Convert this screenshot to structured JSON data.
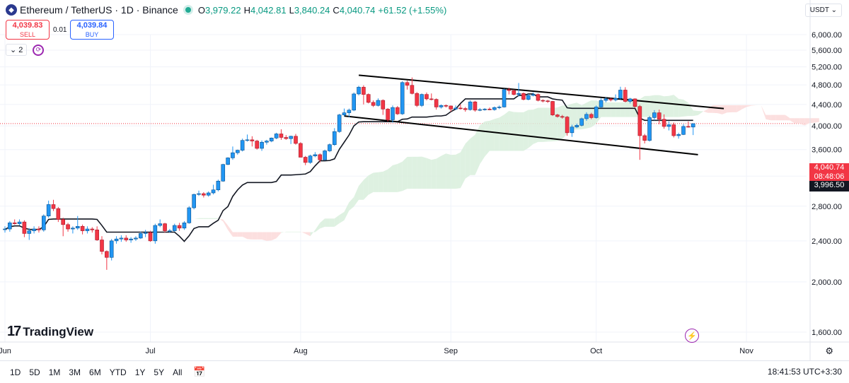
{
  "header": {
    "symbol_title": "Ethereum / TetherUS · 1D · Binance",
    "open_label": "O",
    "open_value": "3,979.22",
    "high_label": "H",
    "high_value": "4,042.81",
    "low_label": "L",
    "low_value": "3,840.24",
    "close_label": "C",
    "close_value": "4,040.74",
    "change": "+61.52 (+1.55%)",
    "currency": "USDT"
  },
  "trade": {
    "sell_price": "4,039.83",
    "sell_label": "SELL",
    "spread": "0.01",
    "buy_price": "4,039.84",
    "buy_label": "BUY"
  },
  "indicators": {
    "count": "2"
  },
  "price_tags": {
    "last_price": "4,040.74",
    "countdown": "08:48:06",
    "crosshair_price": "3,996.50"
  },
  "brand": {
    "logo_text": "TradingView"
  },
  "footer": {
    "ranges": [
      "1D",
      "5D",
      "1M",
      "3M",
      "6M",
      "YTD",
      "1Y",
      "5Y",
      "All"
    ],
    "clock": "18:41:53 UTC+3:30"
  },
  "colors": {
    "up": "#22ab94",
    "up_body": "#2196f3",
    "down": "#f23645",
    "baseline": "#131722",
    "cloud_green": "#d8efdc",
    "cloud_red": "#fbd9d9"
  },
  "chart_data": {
    "type": "candlestick",
    "title": "Ethereum / TetherUS · 1D · Binance",
    "ylim": [
      1500,
      6200
    ],
    "y_ticks": [
      "6,000.00",
      "5,600.00",
      "5,200.00",
      "4,800.00",
      "4,400.00",
      "4,000.00",
      "3,600.00",
      "3,200.00",
      "2,800.00",
      "2,400.00",
      "2,000.00",
      "1,600.00"
    ],
    "x_tick_labels": [
      "Jun",
      "Jul",
      "Aug",
      "Sep",
      "Oct",
      "Nov"
    ],
    "candles": [
      {
        "date": "2025-06-01",
        "o": 2530,
        "h": 2560,
        "l": 2490,
        "c": 2530
      },
      {
        "date": "2025-06-02",
        "o": 2530,
        "h": 2620,
        "l": 2500,
        "c": 2600
      },
      {
        "date": "2025-06-03",
        "o": 2600,
        "h": 2640,
        "l": 2580,
        "c": 2590
      },
      {
        "date": "2025-06-04",
        "o": 2590,
        "h": 2640,
        "l": 2570,
        "c": 2610
      },
      {
        "date": "2025-06-05",
        "o": 2610,
        "h": 2630,
        "l": 2440,
        "c": 2480
      },
      {
        "date": "2025-06-06",
        "o": 2480,
        "h": 2540,
        "l": 2410,
        "c": 2510
      },
      {
        "date": "2025-06-07",
        "o": 2510,
        "h": 2560,
        "l": 2480,
        "c": 2530
      },
      {
        "date": "2025-06-08",
        "o": 2530,
        "h": 2560,
        "l": 2490,
        "c": 2520
      },
      {
        "date": "2025-06-09",
        "o": 2520,
        "h": 2700,
        "l": 2500,
        "c": 2680
      },
      {
        "date": "2025-06-10",
        "o": 2680,
        "h": 2870,
        "l": 2660,
        "c": 2820
      },
      {
        "date": "2025-06-11",
        "o": 2820,
        "h": 2880,
        "l": 2740,
        "c": 2770
      },
      {
        "date": "2025-06-12",
        "o": 2770,
        "h": 2790,
        "l": 2610,
        "c": 2640
      },
      {
        "date": "2025-06-13",
        "o": 2640,
        "h": 2660,
        "l": 2450,
        "c": 2580
      },
      {
        "date": "2025-06-14",
        "o": 2580,
        "h": 2600,
        "l": 2500,
        "c": 2530
      },
      {
        "date": "2025-06-15",
        "o": 2530,
        "h": 2560,
        "l": 2480,
        "c": 2540
      },
      {
        "date": "2025-06-16",
        "o": 2540,
        "h": 2680,
        "l": 2520,
        "c": 2560
      },
      {
        "date": "2025-06-17",
        "o": 2560,
        "h": 2580,
        "l": 2470,
        "c": 2510
      },
      {
        "date": "2025-06-18",
        "o": 2510,
        "h": 2560,
        "l": 2480,
        "c": 2530
      },
      {
        "date": "2025-06-19",
        "o": 2530,
        "h": 2550,
        "l": 2490,
        "c": 2520
      },
      {
        "date": "2025-06-20",
        "o": 2520,
        "h": 2560,
        "l": 2400,
        "c": 2410
      },
      {
        "date": "2025-06-21",
        "o": 2410,
        "h": 2450,
        "l": 2260,
        "c": 2290
      },
      {
        "date": "2025-06-22",
        "o": 2290,
        "h": 2300,
        "l": 2110,
        "c": 2230
      },
      {
        "date": "2025-06-23",
        "o": 2230,
        "h": 2420,
        "l": 2200,
        "c": 2400
      },
      {
        "date": "2025-06-24",
        "o": 2400,
        "h": 2450,
        "l": 2370,
        "c": 2420
      },
      {
        "date": "2025-06-25",
        "o": 2420,
        "h": 2460,
        "l": 2390,
        "c": 2430
      },
      {
        "date": "2025-06-26",
        "o": 2430,
        "h": 2460,
        "l": 2390,
        "c": 2410
      },
      {
        "date": "2025-06-27",
        "o": 2410,
        "h": 2440,
        "l": 2380,
        "c": 2420
      },
      {
        "date": "2025-06-28",
        "o": 2420,
        "h": 2450,
        "l": 2400,
        "c": 2430
      },
      {
        "date": "2025-06-29",
        "o": 2430,
        "h": 2500,
        "l": 2420,
        "c": 2480
      },
      {
        "date": "2025-06-30",
        "o": 2480,
        "h": 2520,
        "l": 2440,
        "c": 2490
      },
      {
        "date": "2025-07-01",
        "o": 2490,
        "h": 2510,
        "l": 2390,
        "c": 2400
      },
      {
        "date": "2025-07-02",
        "o": 2400,
        "h": 2590,
        "l": 2370,
        "c": 2570
      },
      {
        "date": "2025-07-03",
        "o": 2570,
        "h": 2640,
        "l": 2550,
        "c": 2590
      },
      {
        "date": "2025-07-04",
        "o": 2590,
        "h": 2600,
        "l": 2490,
        "c": 2510
      },
      {
        "date": "2025-07-05",
        "o": 2510,
        "h": 2530,
        "l": 2490,
        "c": 2510
      },
      {
        "date": "2025-07-06",
        "o": 2510,
        "h": 2590,
        "l": 2500,
        "c": 2570
      },
      {
        "date": "2025-07-07",
        "o": 2570,
        "h": 2600,
        "l": 2510,
        "c": 2540
      },
      {
        "date": "2025-07-08",
        "o": 2540,
        "h": 2620,
        "l": 2520,
        "c": 2600
      },
      {
        "date": "2025-07-09",
        "o": 2600,
        "h": 2800,
        "l": 2590,
        "c": 2780
      },
      {
        "date": "2025-07-10",
        "o": 2780,
        "h": 2960,
        "l": 2760,
        "c": 2950
      },
      {
        "date": "2025-07-11",
        "o": 2950,
        "h": 3000,
        "l": 2930,
        "c": 2960
      },
      {
        "date": "2025-07-12",
        "o": 2960,
        "h": 2980,
        "l": 2910,
        "c": 2940
      },
      {
        "date": "2025-07-13",
        "o": 2940,
        "h": 2990,
        "l": 2920,
        "c": 2970
      },
      {
        "date": "2025-07-14",
        "o": 2970,
        "h": 3080,
        "l": 2950,
        "c": 3010
      },
      {
        "date": "2025-07-15",
        "o": 3010,
        "h": 3150,
        "l": 2990,
        "c": 3130
      },
      {
        "date": "2025-07-16",
        "o": 3130,
        "h": 3380,
        "l": 3120,
        "c": 3370
      },
      {
        "date": "2025-07-17",
        "o": 3370,
        "h": 3480,
        "l": 3360,
        "c": 3470
      },
      {
        "date": "2025-07-18",
        "o": 3470,
        "h": 3650,
        "l": 3440,
        "c": 3550
      },
      {
        "date": "2025-07-19",
        "o": 3550,
        "h": 3600,
        "l": 3520,
        "c": 3590
      },
      {
        "date": "2025-07-20",
        "o": 3590,
        "h": 3780,
        "l": 3570,
        "c": 3750
      },
      {
        "date": "2025-07-21",
        "o": 3750,
        "h": 3850,
        "l": 3730,
        "c": 3760
      },
      {
        "date": "2025-07-22",
        "o": 3760,
        "h": 3820,
        "l": 3650,
        "c": 3740
      },
      {
        "date": "2025-07-23",
        "o": 3740,
        "h": 3760,
        "l": 3600,
        "c": 3620
      },
      {
        "date": "2025-07-24",
        "o": 3620,
        "h": 3750,
        "l": 3580,
        "c": 3720
      },
      {
        "date": "2025-07-25",
        "o": 3720,
        "h": 3760,
        "l": 3680,
        "c": 3740
      },
      {
        "date": "2025-07-26",
        "o": 3740,
        "h": 3800,
        "l": 3720,
        "c": 3790
      },
      {
        "date": "2025-07-27",
        "o": 3790,
        "h": 3880,
        "l": 3770,
        "c": 3860
      },
      {
        "date": "2025-07-28",
        "o": 3860,
        "h": 3940,
        "l": 3760,
        "c": 3800
      },
      {
        "date": "2025-07-29",
        "o": 3800,
        "h": 3840,
        "l": 3760,
        "c": 3780
      },
      {
        "date": "2025-07-30",
        "o": 3780,
        "h": 3830,
        "l": 3690,
        "c": 3820
      },
      {
        "date": "2025-07-31",
        "o": 3820,
        "h": 3860,
        "l": 3680,
        "c": 3700
      },
      {
        "date": "2025-08-01",
        "o": 3700,
        "h": 3720,
        "l": 3480,
        "c": 3480
      },
      {
        "date": "2025-08-02",
        "o": 3480,
        "h": 3500,
        "l": 3360,
        "c": 3400
      },
      {
        "date": "2025-08-03",
        "o": 3400,
        "h": 3520,
        "l": 3380,
        "c": 3500
      },
      {
        "date": "2025-08-04",
        "o": 3500,
        "h": 3560,
        "l": 3480,
        "c": 3520
      },
      {
        "date": "2025-08-05",
        "o": 3520,
        "h": 3540,
        "l": 3400,
        "c": 3440
      },
      {
        "date": "2025-08-06",
        "o": 3440,
        "h": 3600,
        "l": 3430,
        "c": 3580
      },
      {
        "date": "2025-08-07",
        "o": 3580,
        "h": 3700,
        "l": 3560,
        "c": 3680
      },
      {
        "date": "2025-08-08",
        "o": 3680,
        "h": 3960,
        "l": 3660,
        "c": 3900
      },
      {
        "date": "2025-08-09",
        "o": 3900,
        "h": 4220,
        "l": 3880,
        "c": 4200
      },
      {
        "date": "2025-08-10",
        "o": 4200,
        "h": 4320,
        "l": 4170,
        "c": 4240
      },
      {
        "date": "2025-08-11",
        "o": 4240,
        "h": 4320,
        "l": 4160,
        "c": 4290
      },
      {
        "date": "2025-08-12",
        "o": 4290,
        "h": 4640,
        "l": 4270,
        "c": 4610
      },
      {
        "date": "2025-08-13",
        "o": 4610,
        "h": 4780,
        "l": 4580,
        "c": 4750
      },
      {
        "date": "2025-08-14",
        "o": 4750,
        "h": 4790,
        "l": 4400,
        "c": 4600
      },
      {
        "date": "2025-08-15",
        "o": 4600,
        "h": 4620,
        "l": 4420,
        "c": 4440
      },
      {
        "date": "2025-08-16",
        "o": 4440,
        "h": 4480,
        "l": 4350,
        "c": 4380
      },
      {
        "date": "2025-08-17",
        "o": 4380,
        "h": 4520,
        "l": 4360,
        "c": 4480
      },
      {
        "date": "2025-08-18",
        "o": 4480,
        "h": 4500,
        "l": 4200,
        "c": 4310
      },
      {
        "date": "2025-08-19",
        "o": 4310,
        "h": 4330,
        "l": 4080,
        "c": 4110
      },
      {
        "date": "2025-08-20",
        "o": 4110,
        "h": 4380,
        "l": 4060,
        "c": 4340
      },
      {
        "date": "2025-08-21",
        "o": 4340,
        "h": 4370,
        "l": 4200,
        "c": 4220
      },
      {
        "date": "2025-08-22",
        "o": 4220,
        "h": 4880,
        "l": 4200,
        "c": 4850
      },
      {
        "date": "2025-08-23",
        "o": 4850,
        "h": 4890,
        "l": 4700,
        "c": 4790
      },
      {
        "date": "2025-08-24",
        "o": 4790,
        "h": 4960,
        "l": 4600,
        "c": 4620
      },
      {
        "date": "2025-08-25",
        "o": 4620,
        "h": 4650,
        "l": 4350,
        "c": 4380
      },
      {
        "date": "2025-08-26",
        "o": 4380,
        "h": 4620,
        "l": 4350,
        "c": 4600
      },
      {
        "date": "2025-08-27",
        "o": 4600,
        "h": 4640,
        "l": 4480,
        "c": 4510
      },
      {
        "date": "2025-08-28",
        "o": 4510,
        "h": 4620,
        "l": 4480,
        "c": 4500
      },
      {
        "date": "2025-08-29",
        "o": 4500,
        "h": 4520,
        "l": 4300,
        "c": 4350
      },
      {
        "date": "2025-08-30",
        "o": 4350,
        "h": 4400,
        "l": 4320,
        "c": 4380
      },
      {
        "date": "2025-08-31",
        "o": 4380,
        "h": 4400,
        "l": 4340,
        "c": 4370
      },
      {
        "date": "2025-09-01",
        "o": 4370,
        "h": 4380,
        "l": 4260,
        "c": 4310
      },
      {
        "date": "2025-09-02",
        "o": 4310,
        "h": 4380,
        "l": 4290,
        "c": 4330
      },
      {
        "date": "2025-09-03",
        "o": 4330,
        "h": 4400,
        "l": 4300,
        "c": 4320
      },
      {
        "date": "2025-09-04",
        "o": 4320,
        "h": 4350,
        "l": 4260,
        "c": 4300
      },
      {
        "date": "2025-09-05",
        "o": 4300,
        "h": 4480,
        "l": 4280,
        "c": 4450
      },
      {
        "date": "2025-09-06",
        "o": 4450,
        "h": 4470,
        "l": 4260,
        "c": 4290
      },
      {
        "date": "2025-09-07",
        "o": 4290,
        "h": 4330,
        "l": 4270,
        "c": 4300
      },
      {
        "date": "2025-09-08",
        "o": 4300,
        "h": 4330,
        "l": 4280,
        "c": 4310
      },
      {
        "date": "2025-09-09",
        "o": 4310,
        "h": 4340,
        "l": 4290,
        "c": 4300
      },
      {
        "date": "2025-09-10",
        "o": 4300,
        "h": 4360,
        "l": 4280,
        "c": 4340
      },
      {
        "date": "2025-09-11",
        "o": 4340,
        "h": 4380,
        "l": 4310,
        "c": 4350
      },
      {
        "date": "2025-09-12",
        "o": 4350,
        "h": 4720,
        "l": 4340,
        "c": 4700
      },
      {
        "date": "2025-09-13",
        "o": 4700,
        "h": 4740,
        "l": 4600,
        "c": 4680
      },
      {
        "date": "2025-09-14",
        "o": 4680,
        "h": 4700,
        "l": 4580,
        "c": 4600
      },
      {
        "date": "2025-09-15",
        "o": 4600,
        "h": 4840,
        "l": 4560,
        "c": 4620
      },
      {
        "date": "2025-09-16",
        "o": 4620,
        "h": 4640,
        "l": 4480,
        "c": 4500
      },
      {
        "date": "2025-09-17",
        "o": 4500,
        "h": 4610,
        "l": 4480,
        "c": 4580
      },
      {
        "date": "2025-09-18",
        "o": 4580,
        "h": 4640,
        "l": 4560,
        "c": 4600
      },
      {
        "date": "2025-09-19",
        "o": 4600,
        "h": 4620,
        "l": 4460,
        "c": 4480
      },
      {
        "date": "2025-09-20",
        "o": 4480,
        "h": 4500,
        "l": 4440,
        "c": 4470
      },
      {
        "date": "2025-09-21",
        "o": 4470,
        "h": 4490,
        "l": 4430,
        "c": 4460
      },
      {
        "date": "2025-09-22",
        "o": 4460,
        "h": 4470,
        "l": 4180,
        "c": 4200
      },
      {
        "date": "2025-09-23",
        "o": 4200,
        "h": 4220,
        "l": 4150,
        "c": 4170
      },
      {
        "date": "2025-09-24",
        "o": 4170,
        "h": 4200,
        "l": 4130,
        "c": 4160
      },
      {
        "date": "2025-09-25",
        "o": 4160,
        "h": 4180,
        "l": 3830,
        "c": 3880
      },
      {
        "date": "2025-09-26",
        "o": 3880,
        "h": 4020,
        "l": 3810,
        "c": 3980
      },
      {
        "date": "2025-09-27",
        "o": 3980,
        "h": 4040,
        "l": 3960,
        "c": 4010
      },
      {
        "date": "2025-09-28",
        "o": 4010,
        "h": 4150,
        "l": 3990,
        "c": 4130
      },
      {
        "date": "2025-09-29",
        "o": 4130,
        "h": 4250,
        "l": 4090,
        "c": 4210
      },
      {
        "date": "2025-09-30",
        "o": 4210,
        "h": 4240,
        "l": 4120,
        "c": 4150
      },
      {
        "date": "2025-10-01",
        "o": 4150,
        "h": 4380,
        "l": 4130,
        "c": 4350
      },
      {
        "date": "2025-10-02",
        "o": 4350,
        "h": 4520,
        "l": 4330,
        "c": 4480
      },
      {
        "date": "2025-10-03",
        "o": 4480,
        "h": 4540,
        "l": 4440,
        "c": 4510
      },
      {
        "date": "2025-10-04",
        "o": 4510,
        "h": 4530,
        "l": 4460,
        "c": 4490
      },
      {
        "date": "2025-10-05",
        "o": 4490,
        "h": 4600,
        "l": 4460,
        "c": 4520
      },
      {
        "date": "2025-10-06",
        "o": 4520,
        "h": 4760,
        "l": 4500,
        "c": 4690
      },
      {
        "date": "2025-10-07",
        "o": 4690,
        "h": 4750,
        "l": 4440,
        "c": 4460
      },
      {
        "date": "2025-10-08",
        "o": 4460,
        "h": 4530,
        "l": 4420,
        "c": 4510
      },
      {
        "date": "2025-10-09",
        "o": 4510,
        "h": 4520,
        "l": 4340,
        "c": 4360
      },
      {
        "date": "2025-10-10",
        "o": 4360,
        "h": 4390,
        "l": 3440,
        "c": 3830
      },
      {
        "date": "2025-10-11",
        "o": 3830,
        "h": 3860,
        "l": 3700,
        "c": 3750
      },
      {
        "date": "2025-10-12",
        "o": 3750,
        "h": 4180,
        "l": 3730,
        "c": 4150
      },
      {
        "date": "2025-10-13",
        "o": 4150,
        "h": 4290,
        "l": 4100,
        "c": 4240
      },
      {
        "date": "2025-10-14",
        "o": 4240,
        "h": 4300,
        "l": 4030,
        "c": 4120
      },
      {
        "date": "2025-10-15",
        "o": 4120,
        "h": 4210,
        "l": 3950,
        "c": 3990
      },
      {
        "date": "2025-10-16",
        "o": 3990,
        "h": 4080,
        "l": 3920,
        "c": 4020
      },
      {
        "date": "2025-10-17",
        "o": 4020,
        "h": 4060,
        "l": 3800,
        "c": 3830
      },
      {
        "date": "2025-10-18",
        "o": 3830,
        "h": 3880,
        "l": 3780,
        "c": 3850
      },
      {
        "date": "2025-10-19",
        "o": 3850,
        "h": 4030,
        "l": 3840,
        "c": 3990
      },
      {
        "date": "2025-10-20",
        "o": 3990,
        "h": 4080,
        "l": 3970,
        "c": 3979
      },
      {
        "date": "2025-10-21",
        "o": 3979.22,
        "h": 4042.81,
        "l": 3840.24,
        "c": 4040.74
      }
    ]
  }
}
